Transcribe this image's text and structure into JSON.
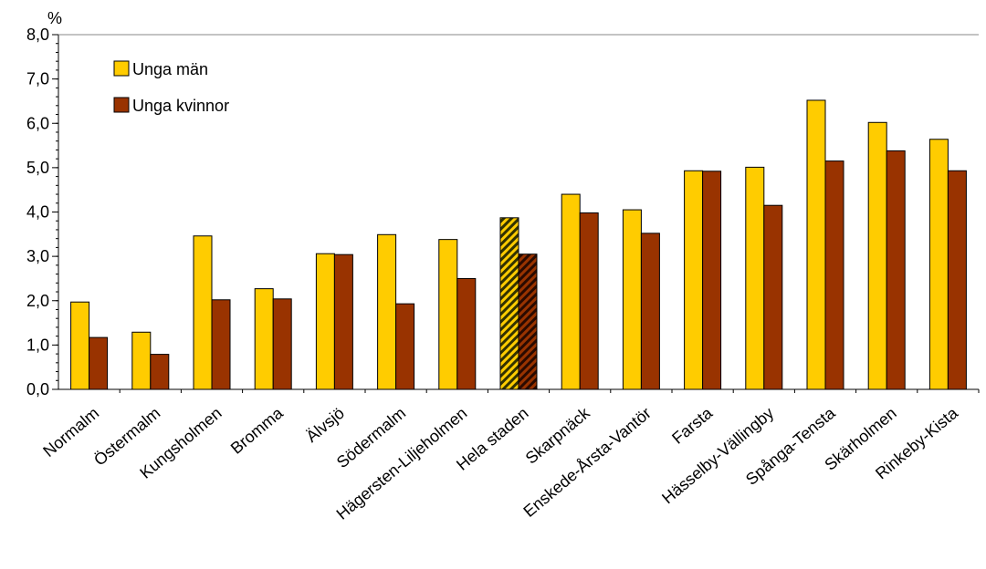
{
  "chart_data": {
    "type": "bar",
    "ylabel": "%",
    "ylim": [
      0,
      8
    ],
    "y_ticks": [
      "0,0",
      "1,0",
      "2,0",
      "3,0",
      "4,0",
      "5,0",
      "6,0",
      "7,0",
      "8,0"
    ],
    "categories": [
      "Normalm",
      "Östermalm",
      "Kungsholmen",
      "Bromma",
      "Älvsjö",
      "Södermalm",
      "Hägersten-Liljeholmen",
      "Hela staden",
      "Skarpnäck",
      "Enskede-Årsta-Vantör",
      "Farsta",
      "Hässelby-Vällingby",
      "Spånga-Tensta",
      "Skärholmen",
      "Rinkeby-Kista"
    ],
    "highlight_category": "Hela staden",
    "series": [
      {
        "name": "Unga män",
        "color": "#FFCC00",
        "values": [
          1.97,
          1.29,
          3.46,
          2.27,
          3.06,
          3.49,
          3.38,
          3.87,
          4.4,
          4.05,
          4.93,
          5.01,
          6.52,
          6.02,
          5.64
        ]
      },
      {
        "name": "Unga kvinnor",
        "color": "#993300",
        "values": [
          1.17,
          0.79,
          2.02,
          2.04,
          3.04,
          1.93,
          2.5,
          3.05,
          3.98,
          3.52,
          4.92,
          4.15,
          5.15,
          5.38,
          4.93
        ]
      }
    ],
    "legend_position": "top-left",
    "grid": false
  }
}
